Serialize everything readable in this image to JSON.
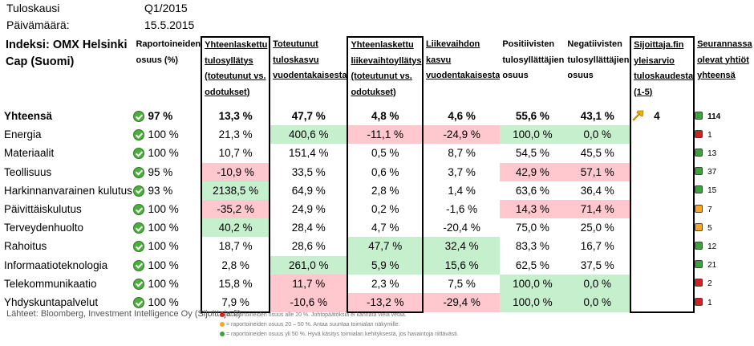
{
  "meta": {
    "period_label": "Tuloskausi",
    "period_value": "Q1/2015",
    "date_label": "Päivämäärä:",
    "date_value": "15.5.2015"
  },
  "headers": {
    "index": "Indeksi: OMX Helsinki Cap (Suomi)",
    "reported": "Raportoineiden osuus (%)",
    "earnings_surprise": "Yhteenlaskettu tulosyllätys (toteutunut vs. odotukset)",
    "earnings_growth": "Toteutunut tuloskasvu vuodentakaisesta",
    "revenue_surprise": "Yhteenlaskettu liikevaihtoyllätys (toteutunut vs. odotukset)",
    "revenue_growth": "Liikevaihdon kasvu vuodentakaisesta",
    "positive_share": "Positiivisten tulosyllättäjien osuus",
    "negative_share": "Negatiivisten tulosyllättäjien osuus",
    "sijoittaja": "Sijoittaja.fin yleisarvio tuloskaudesta (1-5)",
    "followed": "Seurannassa olevat yhtiöt yhteensä"
  },
  "rows": [
    {
      "name": "Yhteensä",
      "reported": "97 %",
      "es": "13,3 %",
      "eg": "47,7 %",
      "rs": "4,8 %",
      "rg": "4,6 %",
      "pos": "55,6 %",
      "neg": "43,1 %",
      "followed": "114",
      "dot": "g"
    },
    {
      "name": "Energia",
      "reported": "100 %",
      "es": "21,3 %",
      "eg": "400,6 %",
      "rs": "-11,1 %",
      "rg": "-24,9 %",
      "pos": "100,0 %",
      "neg": "0,0 %",
      "followed": "1",
      "dot": "r"
    },
    {
      "name": "Materiaalit",
      "reported": "100 %",
      "es": "10,7 %",
      "eg": "151,4 %",
      "rs": "0,5 %",
      "rg": "8,7 %",
      "pos": "54,5 %",
      "neg": "45,5 %",
      "followed": "13",
      "dot": "g"
    },
    {
      "name": "Teollisuus",
      "reported": "95 %",
      "es": "-10,9 %",
      "eg": "33,5 %",
      "rs": "0,6 %",
      "rg": "3,7 %",
      "pos": "42,9 %",
      "neg": "57,1 %",
      "followed": "37",
      "dot": "g"
    },
    {
      "name": "Harkinnanvarainen kulutus",
      "reported": "93 %",
      "es": "2138,5 %",
      "eg": "64,9 %",
      "rs": "2,8 %",
      "rg": "1,4 %",
      "pos": "63,6 %",
      "neg": "36,4 %",
      "followed": "15",
      "dot": "g"
    },
    {
      "name": "Päivittäiskulutus",
      "reported": "100 %",
      "es": "-35,2 %",
      "eg": "24,9 %",
      "rs": "0,2 %",
      "rg": "-1,6 %",
      "pos": "14,3 %",
      "neg": "71,4 %",
      "followed": "7",
      "dot": "o"
    },
    {
      "name": "Terveydenhuolto",
      "reported": "100 %",
      "es": "40,2 %",
      "eg": "28,4 %",
      "rs": "4,7 %",
      "rg": "-20,4 %",
      "pos": "75,0 %",
      "neg": "25,0 %",
      "followed": "5",
      "dot": "o"
    },
    {
      "name": "Rahoitus",
      "reported": "100 %",
      "es": "18,7 %",
      "eg": "28,6 %",
      "rs": "47,7 %",
      "rg": "32,4 %",
      "pos": "83,3 %",
      "neg": "16,7 %",
      "followed": "12",
      "dot": "g"
    },
    {
      "name": "Informaatioteknologia",
      "reported": "100 %",
      "es": "2,8 %",
      "eg": "261,0 %",
      "rs": "5,9 %",
      "rg": "15,6 %",
      "pos": "62,5 %",
      "neg": "37,5 %",
      "followed": "21",
      "dot": "g"
    },
    {
      "name": "Telekommunikaatio",
      "reported": "100 %",
      "es": "15,8 %",
      "eg": "11,7 %",
      "rs": "2,3 %",
      "rg": "7,5 %",
      "pos": "100,0 %",
      "neg": "0,0 %",
      "followed": "2",
      "dot": "r"
    },
    {
      "name": "Yhdyskuntapalvelut",
      "reported": "100 %",
      "es": "7,9 %",
      "eg": "-10,6 %",
      "rs": "-13,2 %",
      "rg": "-29,4 %",
      "pos": "100,0 %",
      "neg": "0,0 %",
      "followed": "1",
      "dot": "r"
    }
  ],
  "highlights": {
    "1": {
      "eg": "green",
      "rs": "red",
      "rg": "red",
      "pos": "green",
      "neg": "green"
    },
    "3": {
      "es": "red",
      "pos": "red",
      "neg": "red"
    },
    "4": {
      "es": "green"
    },
    "5": {
      "es": "red",
      "pos": "red",
      "neg": "red"
    },
    "6": {
      "es": "green"
    },
    "7": {
      "rs": "green",
      "rg": "green"
    },
    "8": {
      "eg": "green",
      "rs": "green",
      "rg": "green"
    },
    "9": {
      "eg": "red",
      "pos": "green",
      "neg": "green"
    },
    "10": {
      "eg": "red",
      "rs": "red",
      "rg": "red",
      "pos": "green",
      "neg": "green"
    }
  },
  "sijoittaja_score": "4",
  "source": "Lähteet: Bloomberg, Investment Intelligence Oy (Sijoittaja.fi)",
  "legend": [
    {
      "color": "#d81f1f",
      "text": "= raportoineiden osuus alle 20 %. Johtopäätöksiä ei kannata vielä vetää."
    },
    {
      "color": "#f5a623",
      "text": "= raportoineiden osuus 20 – 50 %. Antaa suuntaa toimialan näkymille."
    },
    {
      "color": "#3aa33a",
      "text": "= raportoineiden osuus yli 50 %. Hyvä käsitys toimialan kehityksestä, jos havaintoja riittävästi."
    }
  ],
  "colors": {
    "green_fill": "#c6efce",
    "red_fill": "#ffc7ce",
    "check": "#4caf3d",
    "arrow": "#f0b400"
  }
}
